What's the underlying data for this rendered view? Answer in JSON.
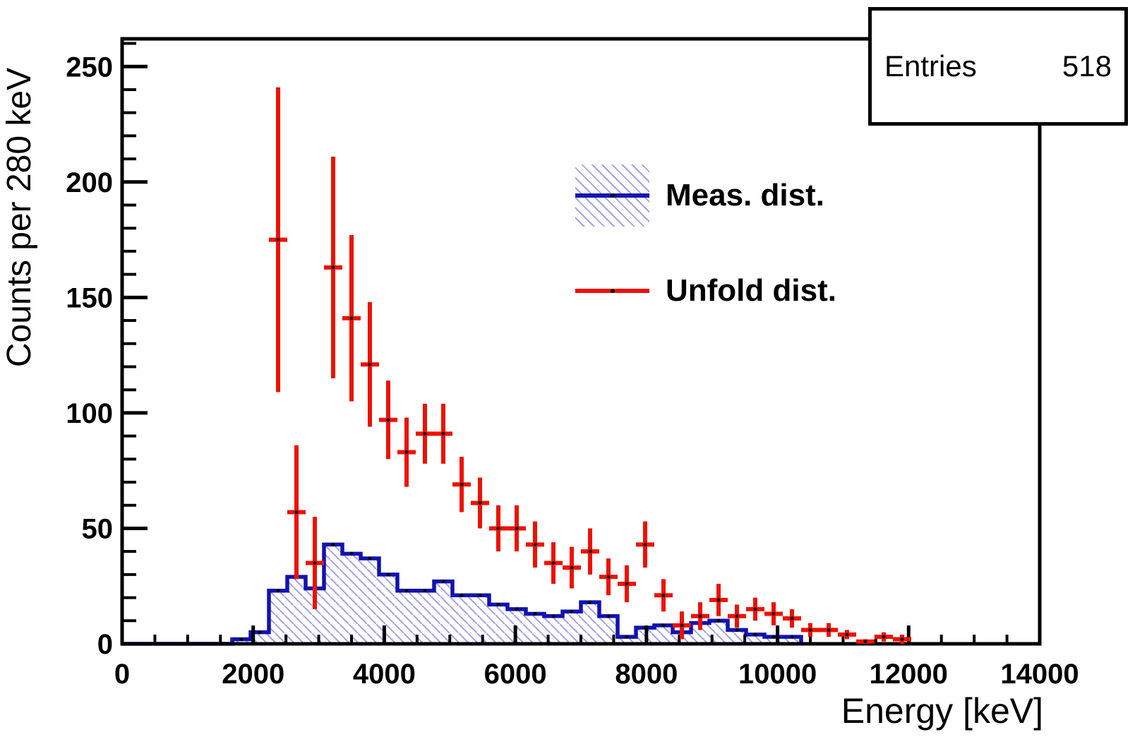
{
  "page": {
    "background": "#ffffff"
  },
  "stats_box": {
    "label": "Entries",
    "value": "518"
  },
  "legend": {
    "items": [
      {
        "label": "Meas. dist.",
        "series": "measured"
      },
      {
        "label": "Unfold dist.",
        "series": "unfolded"
      }
    ]
  },
  "axes": {
    "x": {
      "title": "Energy [keV]",
      "major_ticks": [
        0,
        2000,
        4000,
        6000,
        8000,
        10000,
        12000,
        14000
      ]
    },
    "y": {
      "title": "Counts per 280 keV",
      "major_ticks": [
        0,
        50,
        100,
        150,
        200,
        250
      ]
    }
  },
  "colors": {
    "frame": "#000000",
    "measured_line": "#1212b0",
    "measured_hatch": "#a0a0f0",
    "unfolded": "#ee1100",
    "text": "#000000",
    "marker_dot": "#000000"
  },
  "chart_data": {
    "type": "bar",
    "subtype": "step-histogram-with-error-bar-points",
    "title": "",
    "xlabel": "Energy [keV]",
    "ylabel": "Counts per 280 keV",
    "xlim": [
      0,
      14000
    ],
    "ylim": [
      0,
      262
    ],
    "x_major_tick_step": 2000,
    "x_minor_tick_step": 500,
    "y_major_tick_step": 50,
    "y_minor_tick_step": 10,
    "bin_width_kev": 280,
    "entries": 518,
    "grid": false,
    "legend_position": "upper-center-right",
    "series": [
      {
        "name": "Meas. dist.",
        "style": "hatched-step-histogram",
        "color": "#1212b0",
        "hatch_color": "#a0a0f0",
        "bin_centers": [
          140,
          420,
          700,
          980,
          1260,
          1540,
          1820,
          2100,
          2380,
          2660,
          2940,
          3220,
          3500,
          3780,
          4060,
          4340,
          4620,
          4900,
          5180,
          5460,
          5740,
          6020,
          6300,
          6580,
          6860,
          7140,
          7420,
          7700,
          7980,
          8260,
          8540,
          8820,
          9100,
          9380,
          9660,
          9940,
          10220
        ],
        "values": [
          0,
          0,
          0,
          0,
          0,
          0,
          2,
          5,
          23,
          29,
          24,
          43,
          39,
          37,
          30,
          23,
          23,
          27,
          21,
          21,
          17,
          15,
          13,
          12,
          14,
          18,
          12,
          3,
          7,
          8,
          5,
          9,
          10,
          6,
          4,
          3,
          3
        ]
      },
      {
        "name": "Unfold dist.",
        "style": "error-bar-points",
        "color": "#ee1100",
        "bin_centers": [
          2380,
          2660,
          2940,
          3220,
          3500,
          3780,
          4060,
          4340,
          4620,
          4900,
          5180,
          5460,
          5740,
          6020,
          6300,
          6580,
          6860,
          7140,
          7420,
          7700,
          7980,
          8260,
          8540,
          8820,
          9100,
          9380,
          9660,
          9940,
          10220,
          10500,
          10780,
          11060,
          11340,
          11620,
          11900
        ],
        "values": [
          175,
          57,
          35,
          163,
          141,
          121,
          97,
          83,
          91,
          91,
          69,
          61,
          50,
          50,
          43,
          35,
          33,
          40,
          29,
          26,
          43,
          21,
          8,
          12,
          19,
          12,
          15,
          13,
          11,
          6,
          6,
          4,
          1,
          3,
          2
        ],
        "errors": [
          66,
          29,
          20,
          48,
          36,
          27,
          17,
          15,
          13,
          13,
          12,
          11,
          10,
          10,
          10,
          9,
          9,
          10,
          8,
          8,
          10,
          7,
          6,
          6,
          7,
          5,
          5,
          5,
          4,
          3,
          3,
          2,
          1,
          2,
          2
        ]
      }
    ]
  }
}
